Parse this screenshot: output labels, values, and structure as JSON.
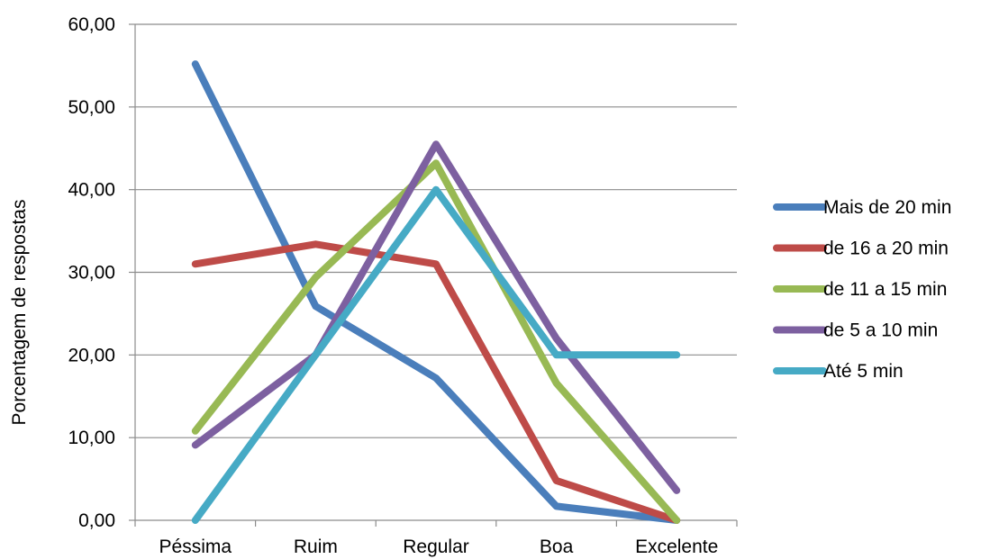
{
  "chart_data": {
    "type": "line",
    "title": "",
    "xlabel": "",
    "ylabel": "Porcentagem de respostas",
    "categories": [
      "Péssima",
      "Ruim",
      "Regular",
      "Boa",
      "Excelente"
    ],
    "y_ticks": [
      "0,00",
      "10,00",
      "20,00",
      "30,00",
      "40,00",
      "50,00",
      "60,00"
    ],
    "ylim": [
      0,
      60
    ],
    "grid": true,
    "legend_position": "right",
    "series": [
      {
        "name": "Mais de 20 min",
        "color": "#4a7ebb",
        "values": [
          55.2,
          25.9,
          17.2,
          1.7,
          0
        ]
      },
      {
        "name": "de 16 a 20 min",
        "color": "#be4b48",
        "values": [
          31.0,
          33.4,
          31.0,
          4.8,
          0
        ]
      },
      {
        "name": "de 11 a 15 min",
        "color": "#98b954",
        "values": [
          10.8,
          29.4,
          43.2,
          16.6,
          0
        ]
      },
      {
        "name": "de 5 a 10 min",
        "color": "#7d60a0",
        "values": [
          9.1,
          20.0,
          45.5,
          22.0,
          3.6
        ]
      },
      {
        "name": "Até 5 min",
        "color": "#46aac5",
        "values": [
          0,
          20.0,
          40.0,
          20.0,
          20.0
        ]
      }
    ]
  }
}
